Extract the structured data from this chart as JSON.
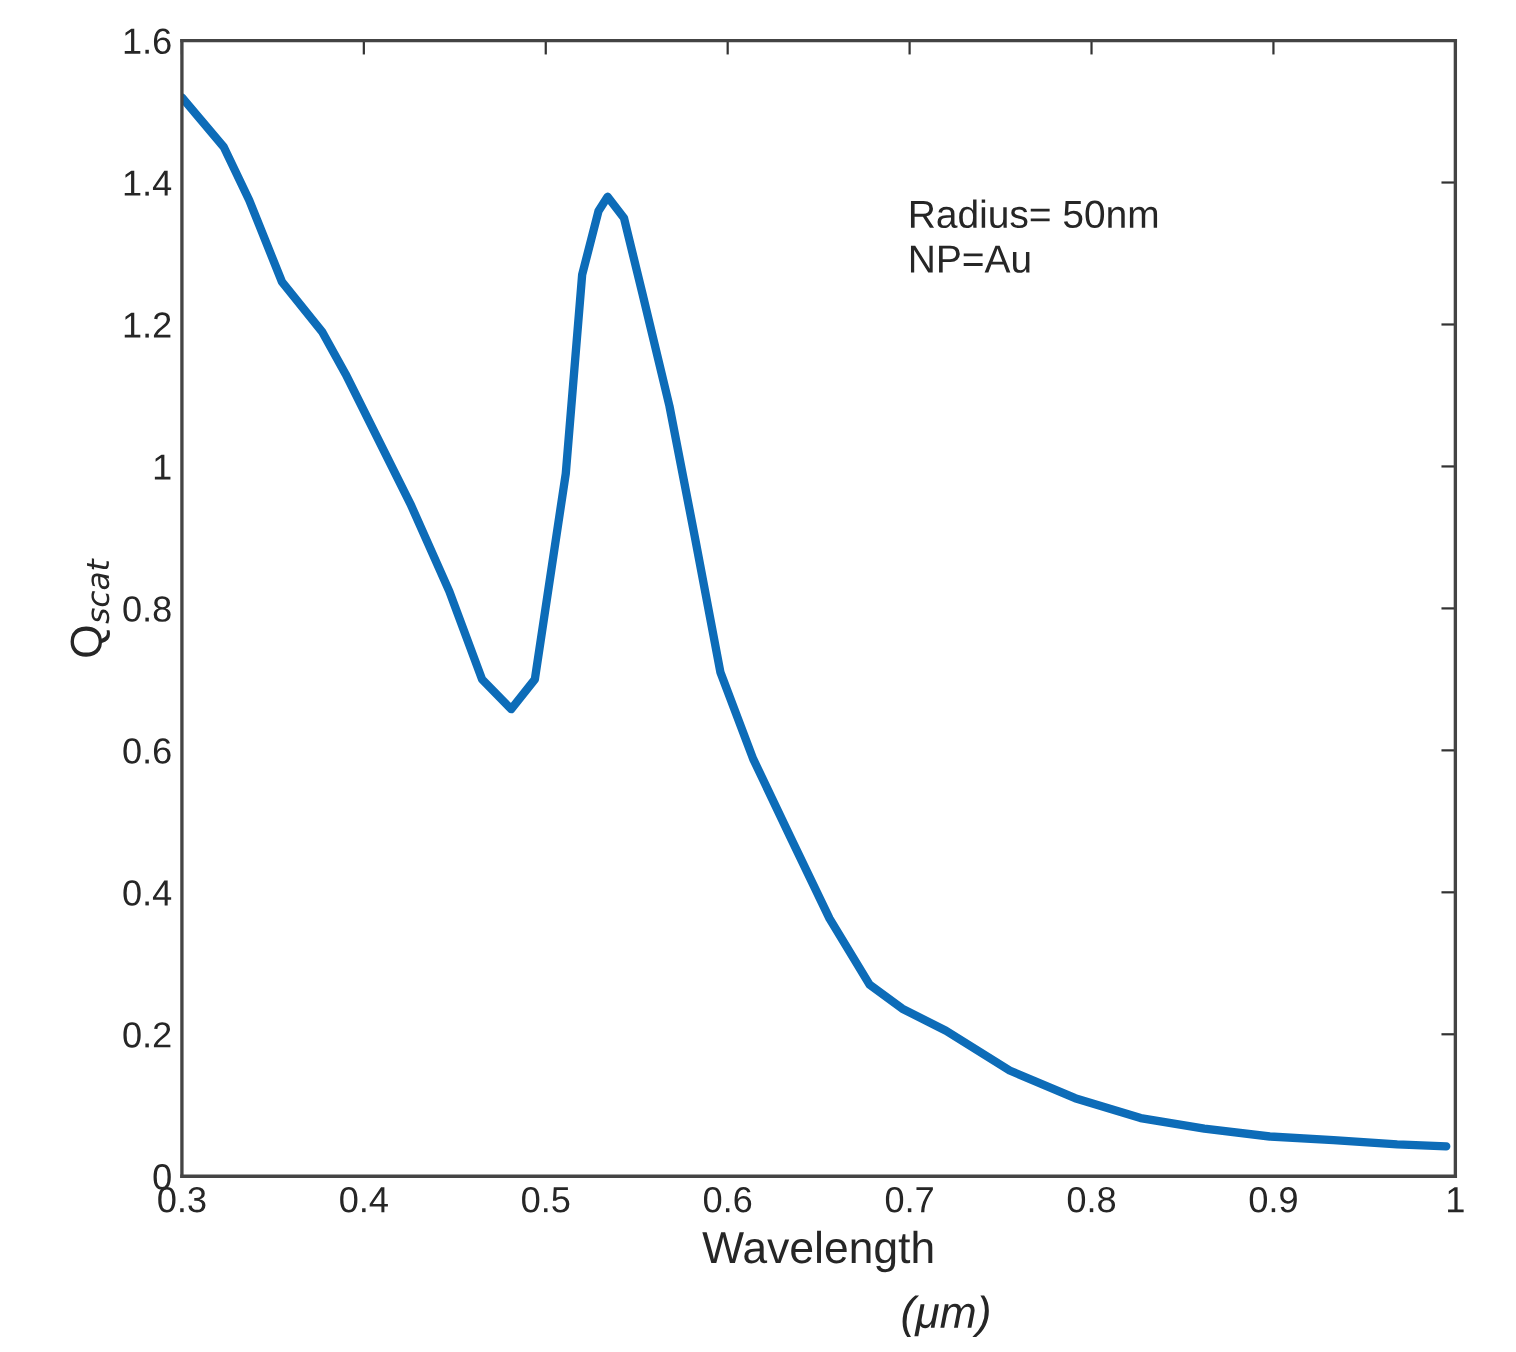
{
  "chart_data": {
    "type": "line",
    "xlabel": "Wavelength",
    "ylabel": "Q$_{scat}$",
    "annotations": [
      "Radius= 50nm\nNP=Au",
      "(μm)"
    ],
    "x": [
      0.3,
      0.323,
      0.337,
      0.355,
      0.377,
      0.39,
      0.426,
      0.447,
      0.465,
      0.481,
      0.494,
      0.511,
      0.52,
      0.529,
      0.534,
      0.543,
      0.553,
      0.568,
      0.582,
      0.596,
      0.614,
      0.635,
      0.656,
      0.678,
      0.696,
      0.72,
      0.755,
      0.791,
      0.827,
      0.862,
      0.898,
      0.933,
      0.968,
      0.995
    ],
    "series": [
      {
        "color": "#0d6cb8",
        "values": [
          1.52,
          1.45,
          1.375,
          1.26,
          1.19,
          1.13,
          0.945,
          0.824,
          0.7,
          0.658,
          0.7,
          0.99,
          1.27,
          1.36,
          1.38,
          1.35,
          1.245,
          1.085,
          0.9,
          0.71,
          0.588,
          0.475,
          0.363,
          0.27,
          0.236,
          0.205,
          0.149,
          0.11,
          0.082,
          0.067,
          0.056,
          0.051,
          0.045,
          0.042
        ]
      }
    ],
    "xlim": [
      0.3,
      1.0
    ],
    "xticks": [
      0.3,
      0.4,
      0.5,
      0.6,
      0.7,
      0.8,
      0.9,
      {
        "value": 1.0,
        "label": "1"
      }
    ],
    "ylim": [
      0,
      1.6
    ],
    "yticks": [
      0,
      0.2,
      0.4,
      0.6,
      0.8,
      {
        "value": 1.0,
        "label": "1"
      },
      1.2,
      1.4,
      1.6
    ],
    "grid": false,
    "legend": false,
    "line_style": "solid",
    "marker": "none"
  }
}
